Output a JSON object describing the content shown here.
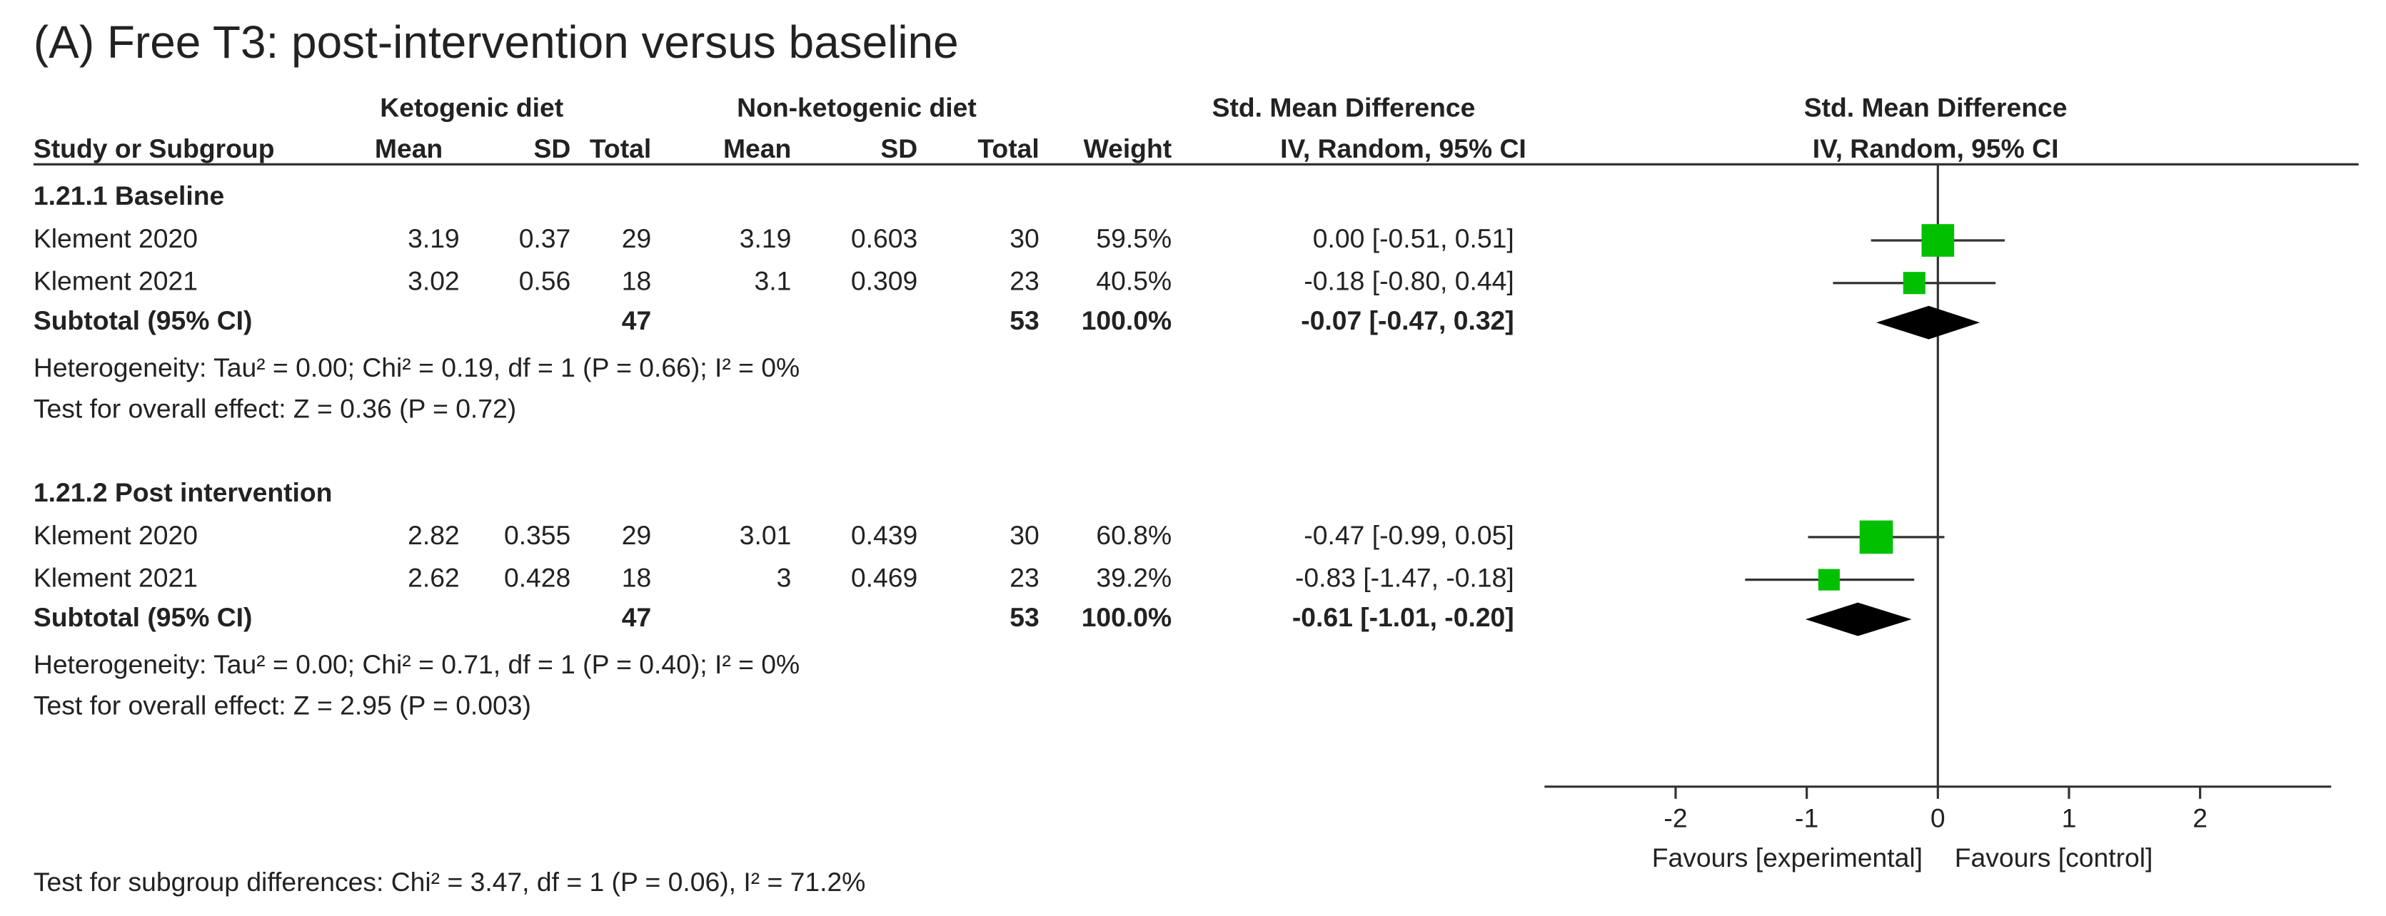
{
  "chart_data": {
    "type": "forest",
    "title": "(A) Free T3: post-intervention versus baseline",
    "group_headers": [
      "Ketogenic diet",
      "Non-ketogenic diet",
      "Std. Mean Difference",
      "Std. Mean Difference"
    ],
    "column_headers": [
      "Study or Subgroup",
      "Mean",
      "SD",
      "Total",
      "Mean",
      "SD",
      "Total",
      "Weight",
      "IV, Random, 95% CI",
      "IV, Random, 95% CI"
    ],
    "marker_color": "#00c000",
    "groups": [
      {
        "label": "1.21.1 Baseline",
        "studies": [
          {
            "name": "Klement 2020",
            "exp_mean": 3.19,
            "exp_sd": 0.37,
            "exp_total": 29,
            "ctl_mean": 3.19,
            "ctl_sd": 0.603,
            "ctl_total": 30,
            "weight": 59.5,
            "weight_label": "59.5%",
            "smd": 0.0,
            "ci_low": -0.51,
            "ci_high": 0.51,
            "ci_label": "0.00 [-0.51, 0.51]"
          },
          {
            "name": "Klement 2021",
            "exp_mean": 3.02,
            "exp_sd": 0.56,
            "exp_total": 18,
            "ctl_mean": 3.1,
            "ctl_sd": 0.309,
            "ctl_total": 23,
            "weight": 40.5,
            "weight_label": "40.5%",
            "smd": -0.18,
            "ci_low": -0.8,
            "ci_high": 0.44,
            "ci_label": "-0.18 [-0.80, 0.44]"
          }
        ],
        "subtotal": {
          "name": "Subtotal (95% CI)",
          "exp_total": 47,
          "ctl_total": 53,
          "weight": 100.0,
          "weight_label": "100.0%",
          "smd": -0.07,
          "ci_low": -0.47,
          "ci_high": 0.32,
          "ci_label": "-0.07 [-0.47, 0.32]"
        },
        "heterogeneity": "Heterogeneity: Tau² = 0.00; Chi² = 0.19, df = 1 (P = 0.66); I² = 0%",
        "overall_effect": "Test for overall effect: Z = 0.36 (P = 0.72)"
      },
      {
        "label": "1.21.2 Post intervention",
        "studies": [
          {
            "name": "Klement 2020",
            "exp_mean": 2.82,
            "exp_sd": 0.355,
            "exp_total": 29,
            "ctl_mean": 3.01,
            "ctl_sd": 0.439,
            "ctl_total": 30,
            "weight": 60.8,
            "weight_label": "60.8%",
            "smd": -0.47,
            "ci_low": -0.99,
            "ci_high": 0.05,
            "ci_label": "-0.47 [-0.99, 0.05]"
          },
          {
            "name": "Klement 2021",
            "exp_mean": 2.62,
            "exp_sd": 0.428,
            "exp_total": 18,
            "ctl_mean": 3,
            "ctl_sd": 0.469,
            "ctl_total": 23,
            "weight": 39.2,
            "weight_label": "39.2%",
            "smd": -0.83,
            "ci_low": -1.47,
            "ci_high": -0.18,
            "ci_label": "-0.83 [-1.47, -0.18]"
          }
        ],
        "subtotal": {
          "name": "Subtotal (95% CI)",
          "exp_total": 47,
          "ctl_total": 53,
          "weight": 100.0,
          "weight_label": "100.0%",
          "smd": -0.61,
          "ci_low": -1.01,
          "ci_high": -0.2,
          "ci_label": "-0.61 [-1.01, -0.20]"
        },
        "heterogeneity": "Heterogeneity: Tau² = 0.00; Chi² = 0.71, df = 1 (P = 0.40); I² = 0%",
        "overall_effect": "Test for overall effect: Z = 2.95 (P = 0.003)"
      }
    ],
    "xlim": [
      -3,
      3
    ],
    "xticks": [
      -2,
      -1,
      0,
      1,
      2
    ],
    "x_label_left": "Favours [experimental]",
    "x_label_right": "Favours [control]",
    "footer": "Test for subgroup differences: Chi² = 3.47, df = 1 (P = 0.06), I² = 71.2%"
  }
}
